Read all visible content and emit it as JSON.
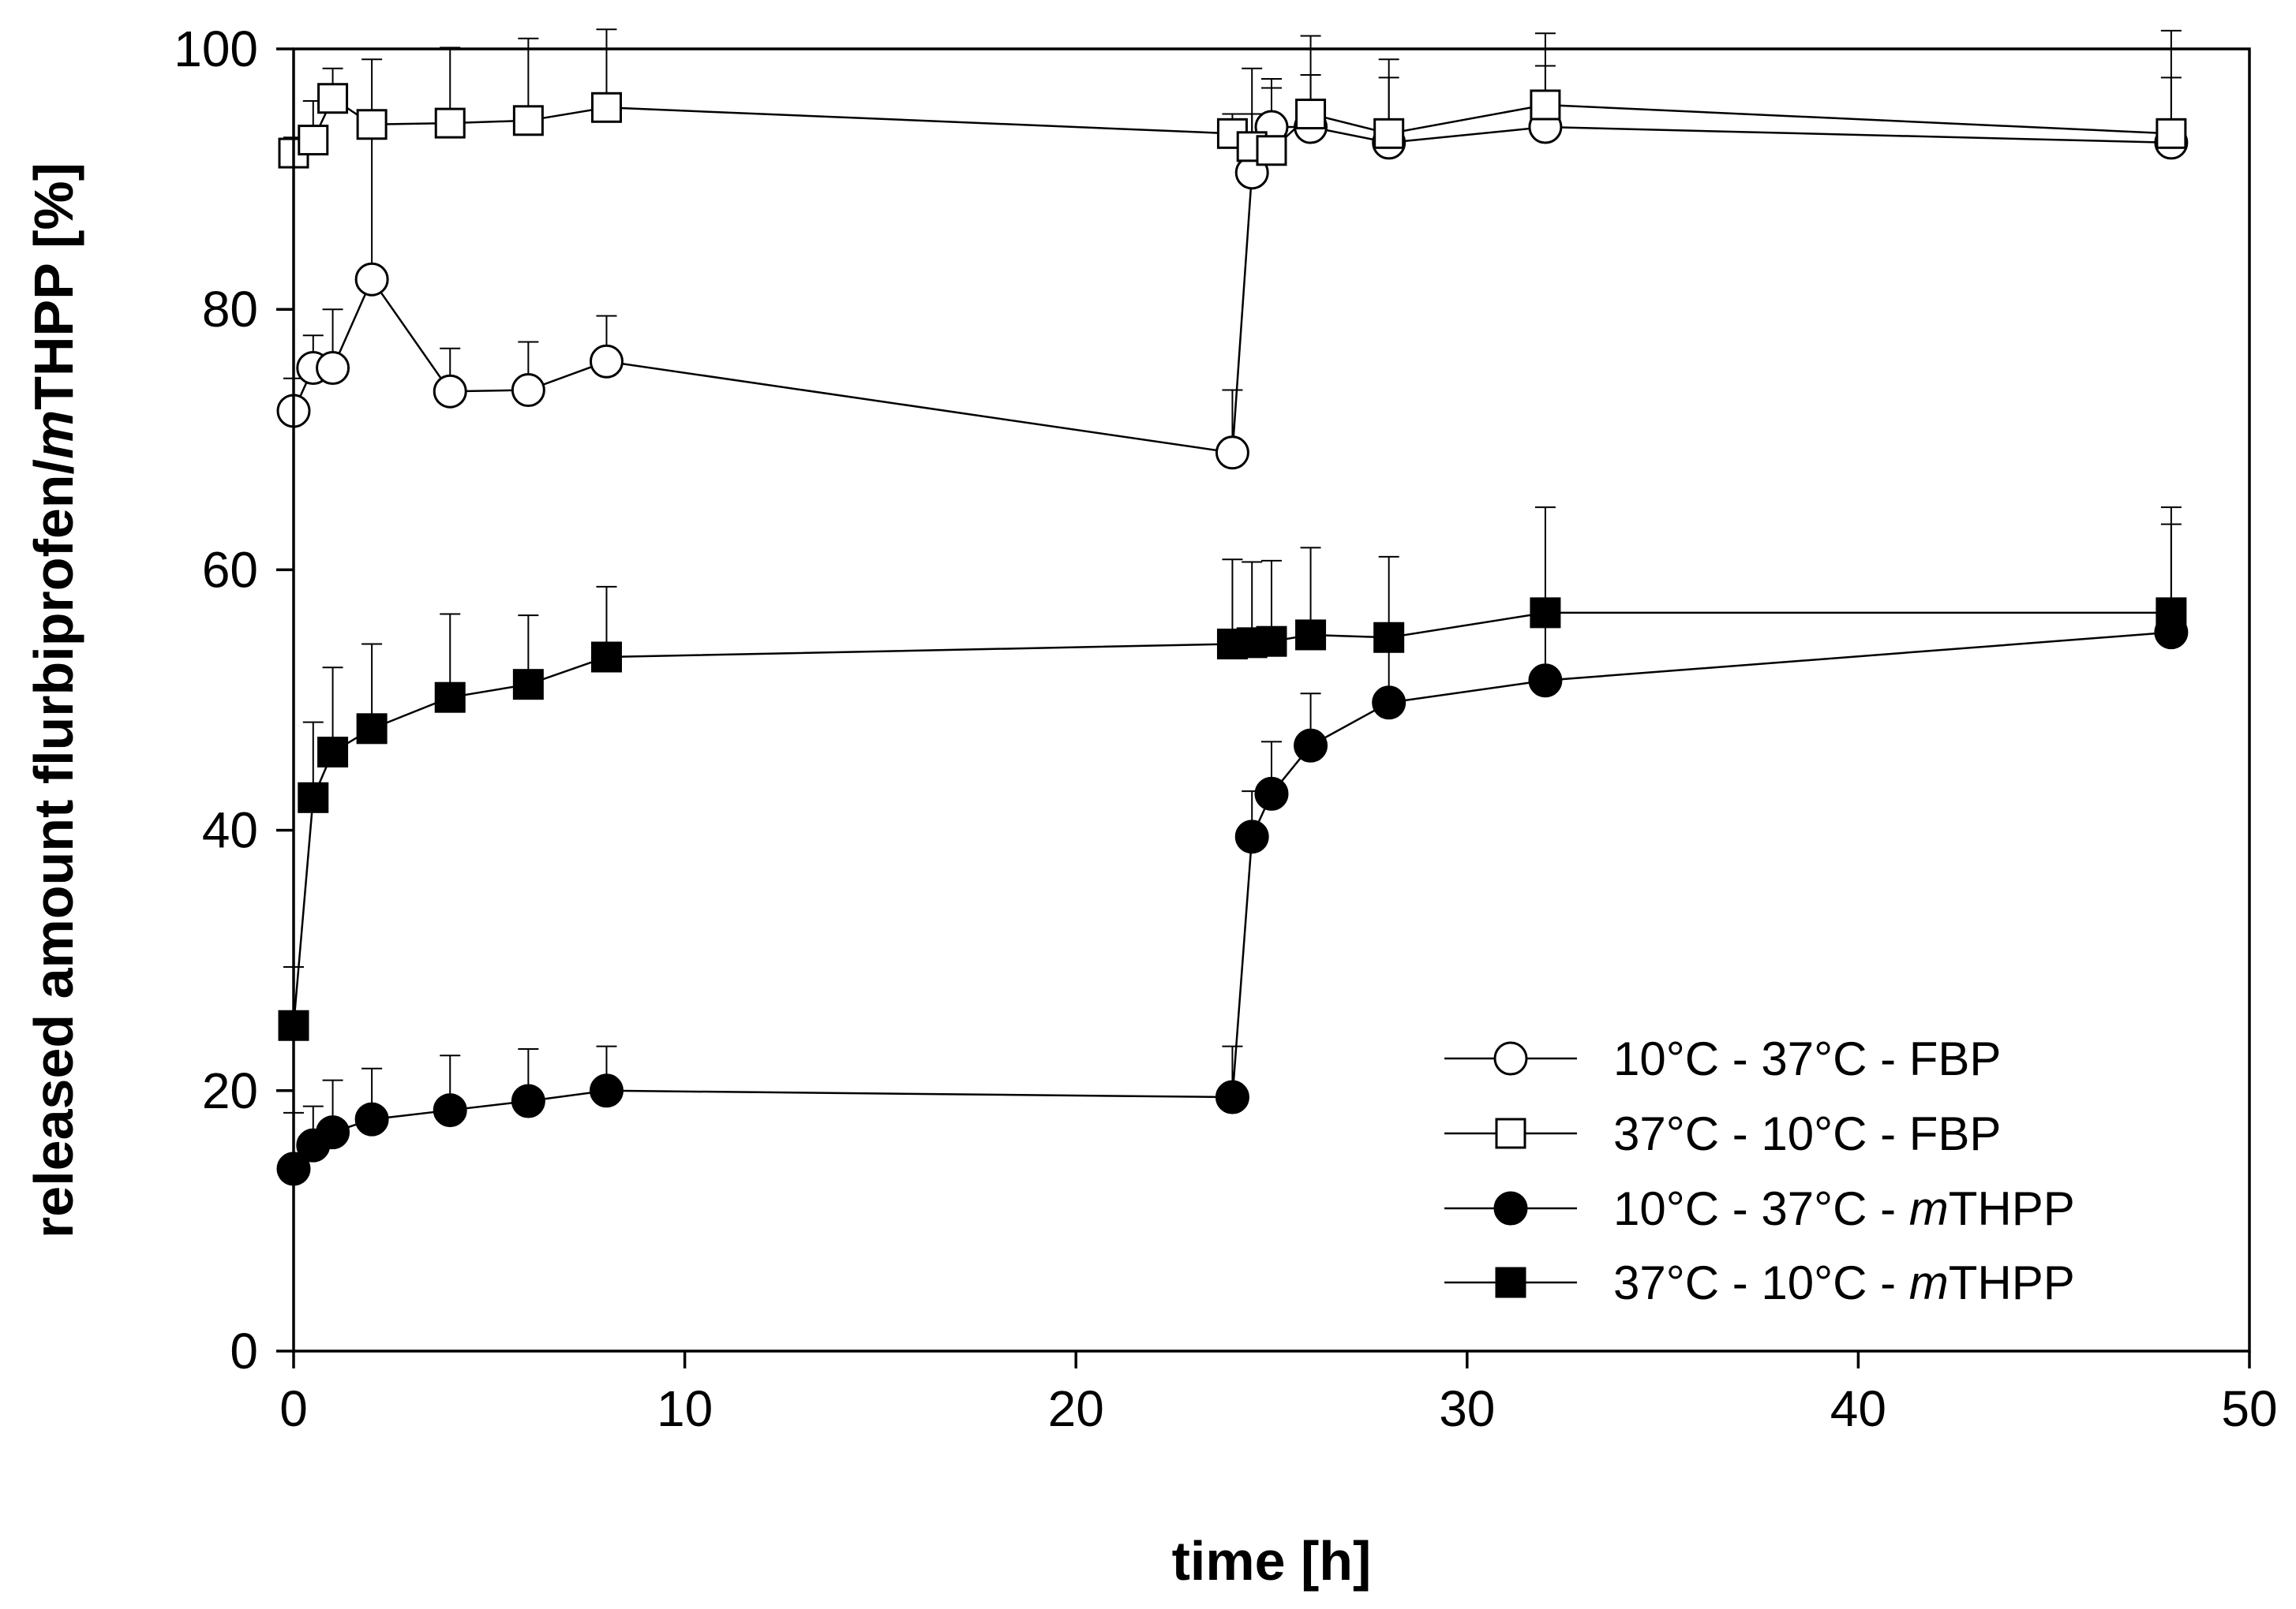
{
  "chart_data": {
    "type": "scatter",
    "title": "",
    "xlabel": "time [h]",
    "ylabel_parts": [
      "released amount flurbiprofen/",
      "m",
      "THPP [%]"
    ],
    "xlim": [
      0,
      50
    ],
    "ylim": [
      0,
      100
    ],
    "x_ticks": [
      0,
      10,
      20,
      30,
      40,
      50
    ],
    "y_ticks": [
      0,
      20,
      40,
      60,
      80,
      100
    ],
    "grid": false,
    "legend_position": "bottom-right",
    "series": [
      {
        "name": "10°C - 37°C - FBP",
        "legend_parts": [
          "10°C - 37°C - FBP"
        ],
        "marker": "circle",
        "fill": "#ffffff",
        "x": [
          0,
          0.5,
          1,
          2,
          4,
          6,
          8,
          24,
          24.5,
          25,
          26,
          28,
          32,
          48
        ],
        "y": [
          72.2,
          75.5,
          75.5,
          82.3,
          73.7,
          73.8,
          76.0,
          69.0,
          90.5,
          94.0,
          94.0,
          92.8,
          94.0,
          92.8
        ],
        "err": [
          2.5,
          2.5,
          4.5,
          11.0,
          3.3,
          3.7,
          3.5,
          4.8,
          8.0,
          3.0,
          7.0,
          6.4,
          7.2,
          8.6
        ]
      },
      {
        "name": "37°C - 10°C - FBP",
        "legend_parts": [
          "37°C - 10°C - FBP"
        ],
        "marker": "square",
        "fill": "#ffffff",
        "x": [
          0,
          0.5,
          1,
          2,
          4,
          6,
          8,
          24,
          24.5,
          25,
          26,
          28,
          32,
          48
        ],
        "y": [
          92.0,
          93.0,
          96.2,
          94.2,
          94.3,
          94.5,
          95.5,
          93.5,
          92.5,
          92.2,
          95.0,
          93.5,
          95.7,
          93.5
        ],
        "err": [
          1.2,
          3.0,
          2.3,
          5.0,
          5.8,
          6.3,
          6.0,
          1.5,
          2.5,
          5.5,
          3.0,
          4.3,
          3.0,
          4.3
        ]
      },
      {
        "name": "10°C - 37°C - mTHPP",
        "legend_parts": [
          "10°C - 37°C - ",
          "m",
          "THPP"
        ],
        "marker": "circle",
        "fill": "#000000",
        "x": [
          0,
          0.5,
          1,
          2,
          4,
          6,
          8,
          24,
          24.5,
          25,
          26,
          28,
          32,
          48
        ],
        "y": [
          14.0,
          15.8,
          16.8,
          17.8,
          18.5,
          19.2,
          20.0,
          19.5,
          39.5,
          42.8,
          46.5,
          49.8,
          51.5,
          55.2
        ],
        "err": [
          4.3,
          3.0,
          4.0,
          3.9,
          4.2,
          4.0,
          3.4,
          3.9,
          3.5,
          4.0,
          4.0,
          4.6,
          5.3,
          8.3
        ]
      },
      {
        "name": "37°C - 10°C - mTHPP",
        "legend_parts": [
          "37°C - 10°C - ",
          "m",
          "THPP"
        ],
        "marker": "square",
        "fill": "#000000",
        "x": [
          0,
          0.5,
          1,
          2,
          4,
          6,
          8,
          24,
          24.5,
          25,
          26,
          28,
          32,
          48
        ],
        "y": [
          25.0,
          42.5,
          46.0,
          47.8,
          50.2,
          51.2,
          53.3,
          54.3,
          54.4,
          54.5,
          55.0,
          54.8,
          56.7,
          56.7
        ],
        "err": [
          4.5,
          5.8,
          6.5,
          6.5,
          6.4,
          5.3,
          5.4,
          6.5,
          6.2,
          6.2,
          6.7,
          6.2,
          8.1,
          8.1
        ]
      }
    ]
  }
}
